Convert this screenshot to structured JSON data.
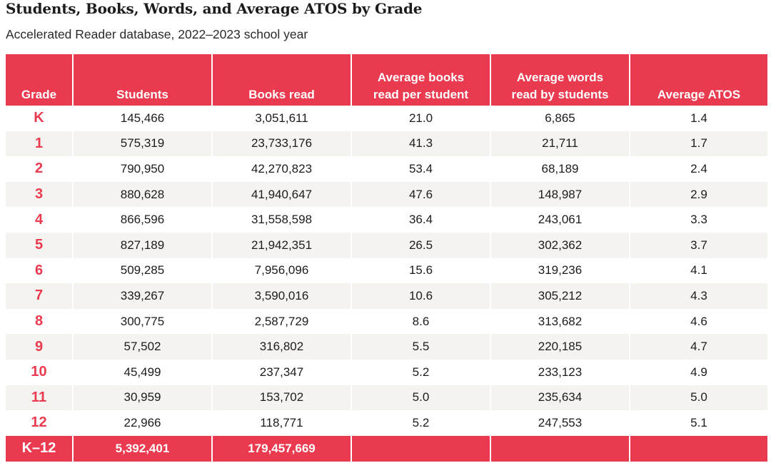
{
  "title": "Students, Books, Words, and Average ATOS by Grade",
  "subtitle": "Accelerated Reader database, 2022–2023 school year",
  "table": {
    "columns": [
      [
        "Grade"
      ],
      [
        "Students"
      ],
      [
        "Books read"
      ],
      [
        "Average books",
        "read per student"
      ],
      [
        "Average words",
        "read by students"
      ],
      [
        "Average ATOS"
      ]
    ],
    "rows": [
      [
        "K",
        "145,466",
        "3,051,611",
        "21.0",
        "6,865",
        "1.4"
      ],
      [
        "1",
        "575,319",
        "23,733,176",
        "41.3",
        "21,711",
        "1.7"
      ],
      [
        "2",
        "790,950",
        "42,270,823",
        "53.4",
        "68,189",
        "2.4"
      ],
      [
        "3",
        "880,628",
        "41,940,647",
        "47.6",
        "148,987",
        "2.9"
      ],
      [
        "4",
        "866,596",
        "31,558,598",
        "36.4",
        "243,061",
        "3.3"
      ],
      [
        "5",
        "827,189",
        "21,942,351",
        "26.5",
        "302,362",
        "3.7"
      ],
      [
        "6",
        "509,285",
        "7,956,096",
        "15.6",
        "319,236",
        "4.1"
      ],
      [
        "7",
        "339,267",
        "3,590,016",
        "10.6",
        "305,212",
        "4.3"
      ],
      [
        "8",
        "300,775",
        "2,587,729",
        "8.6",
        "313,682",
        "4.6"
      ],
      [
        "9",
        "57,502",
        "316,802",
        "5.5",
        "220,185",
        "4.7"
      ],
      [
        "10",
        "45,499",
        "237,347",
        "5.2",
        "233,123",
        "4.9"
      ],
      [
        "11",
        "30,959",
        "153,702",
        "5.0",
        "235,634",
        "5.0"
      ],
      [
        "12",
        "22,966",
        "118,771",
        "5.2",
        "247,553",
        "5.1"
      ]
    ],
    "total": [
      "K–12",
      "5,392,401",
      "179,457,669",
      "",
      "",
      ""
    ]
  },
  "colors": {
    "accent": "#ea3a4f",
    "row_shade": "#f4f3ef",
    "text": "#1c1c1c"
  }
}
